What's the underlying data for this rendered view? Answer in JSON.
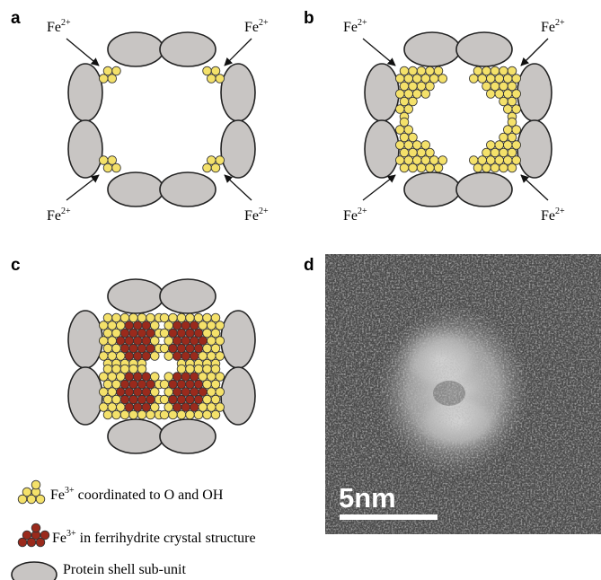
{
  "panels": {
    "a": {
      "label": "a",
      "ions": [
        {
          "base": "Fe",
          "sup": "2+"
        },
        {
          "base": "Fe",
          "sup": "2+"
        },
        {
          "base": "Fe",
          "sup": "2+"
        },
        {
          "base": "Fe",
          "sup": "2+"
        }
      ]
    },
    "b": {
      "label": "b",
      "ions": [
        {
          "base": "Fe",
          "sup": "2+"
        },
        {
          "base": "Fe",
          "sup": "2+"
        },
        {
          "base": "Fe",
          "sup": "2+"
        },
        {
          "base": "Fe",
          "sup": "2+"
        }
      ]
    },
    "c": {
      "label": "c"
    },
    "d": {
      "label": "d",
      "scale_bar": "5nm"
    }
  },
  "legend": [
    {
      "ion": {
        "base": "Fe",
        "sup": "3+"
      },
      "text": "coordinated to O and OH"
    },
    {
      "ion": {
        "base": "Fe",
        "sup": "3+"
      },
      "text": "in ferrihydrite crystal structure"
    },
    {
      "text": "Protein shell sub-unit"
    }
  ]
}
